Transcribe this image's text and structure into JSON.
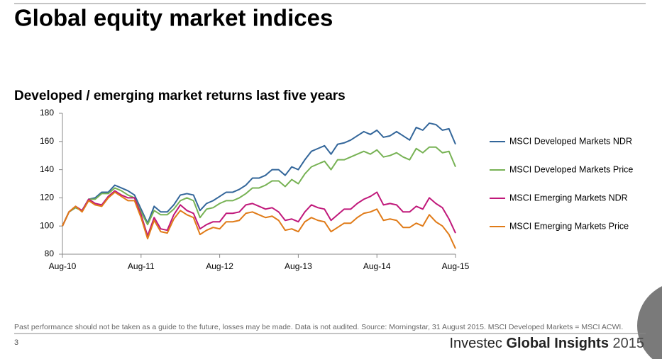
{
  "slide": {
    "title": "Global equity market indices",
    "footnote": "Past performance should not be taken as a guide to the future, losses may be made. Data is not audited. Source: Morningstar, 31 August 2015. MSCI Developed Markets = MSCI ACWI.",
    "page_number": "3",
    "brand_name": "Investec",
    "brand_product": "Global Insights",
    "brand_year": "2015"
  },
  "chart_data": {
    "type": "line",
    "title": "Developed / emerging market returns last five years",
    "categories": [
      "Aug-10",
      null,
      null,
      null,
      null,
      null,
      null,
      null,
      null,
      null,
      null,
      null,
      "Aug-11",
      null,
      null,
      null,
      null,
      null,
      null,
      null,
      null,
      null,
      null,
      null,
      "Aug-12",
      null,
      null,
      null,
      null,
      null,
      null,
      null,
      null,
      null,
      null,
      null,
      "Aug-13",
      null,
      null,
      null,
      null,
      null,
      null,
      null,
      null,
      null,
      null,
      null,
      "Aug-14",
      null,
      null,
      null,
      null,
      null,
      null,
      null,
      null,
      null,
      null,
      null,
      "Aug-15"
    ],
    "ylim": [
      80,
      180
    ],
    "yticks": [
      80,
      100,
      120,
      140,
      160,
      180
    ],
    "legend": "right",
    "series": [
      {
        "name": "MSCI Developed Markets NDR",
        "color": "#33669a",
        "values": [
          100,
          110,
          113,
          111,
          119,
          120,
          124,
          124,
          129,
          127,
          125,
          122,
          112,
          102,
          114,
          110,
          110,
          115,
          122,
          123,
          122,
          111,
          116,
          118,
          121,
          124,
          124,
          126,
          129,
          134,
          134,
          136,
          140,
          140,
          136,
          142,
          140,
          147,
          153,
          155,
          157,
          151,
          158,
          159,
          161,
          164,
          167,
          165,
          168,
          163,
          164,
          167,
          164,
          161,
          170,
          168,
          173,
          172,
          168,
          169,
          158
        ]
      },
      {
        "name": "MSCI Developed Markets Price",
        "color": "#77b254",
        "values": [
          100,
          110,
          113,
          111,
          119,
          119,
          123,
          123,
          127,
          125,
          122,
          120,
          110,
          101,
          111,
          108,
          108,
          112,
          118,
          120,
          118,
          106,
          112,
          113,
          116,
          118,
          118,
          120,
          123,
          127,
          127,
          129,
          132,
          132,
          128,
          133,
          130,
          137,
          142,
          144,
          146,
          140,
          147,
          147,
          149,
          151,
          153,
          151,
          154,
          149,
          150,
          152,
          149,
          147,
          155,
          152,
          156,
          156,
          152,
          153,
          142
        ]
      },
      {
        "name": "MSCI Emerging Markets NDR",
        "color": "#c0187a",
        "values": [
          100,
          110,
          114,
          111,
          119,
          116,
          115,
          121,
          125,
          122,
          120,
          120,
          108,
          93,
          106,
          98,
          97,
          108,
          115,
          111,
          109,
          98,
          101,
          103,
          103,
          109,
          109,
          110,
          115,
          116,
          114,
          112,
          113,
          110,
          104,
          105,
          103,
          110,
          115,
          113,
          112,
          104,
          108,
          112,
          112,
          116,
          119,
          121,
          124,
          115,
          116,
          115,
          110,
          110,
          114,
          112,
          120,
          116,
          113,
          105,
          95
        ]
      },
      {
        "name": "MSCI Emerging Markets Price",
        "color": "#e07b18",
        "values": [
          100,
          110,
          114,
          110,
          118,
          115,
          114,
          120,
          124,
          121,
          118,
          118,
          106,
          91,
          104,
          96,
          95,
          105,
          111,
          108,
          106,
          94,
          97,
          99,
          98,
          103,
          103,
          104,
          109,
          110,
          108,
          106,
          107,
          104,
          97,
          98,
          96,
          103,
          106,
          104,
          103,
          96,
          99,
          102,
          102,
          106,
          109,
          110,
          112,
          104,
          105,
          104,
          99,
          99,
          102,
          100,
          108,
          103,
          100,
          94,
          84
        ]
      }
    ]
  }
}
